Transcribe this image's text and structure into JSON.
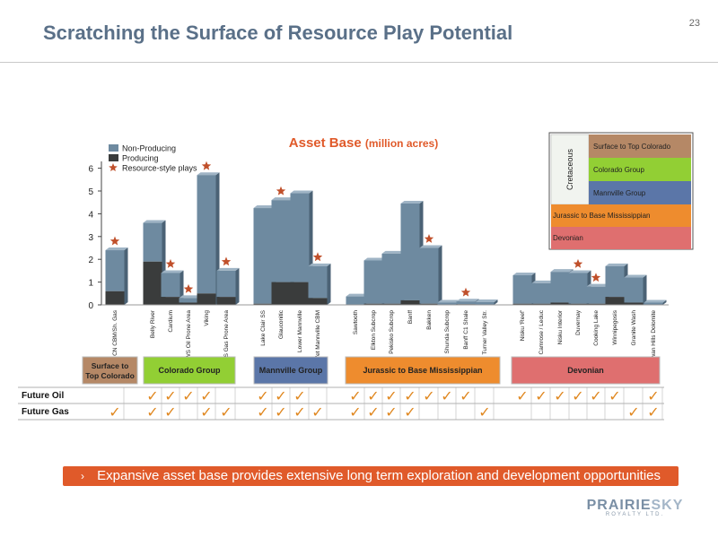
{
  "header": {
    "title": "Scratching the Surface of Resource Play Potential",
    "page_number": "23"
  },
  "callout": {
    "chevron": "›",
    "text": "Expansive asset base provides extensive long term exploration and development opportunities"
  },
  "logo": {
    "brand_part1": "PRAIRIE",
    "brand_part2": "SKY",
    "sub": "ROYALTY LTD."
  },
  "chart_data": {
    "type": "bar",
    "stacked": true,
    "title": "Asset Base",
    "subtitle": "(million acres)",
    "ylim": [
      0,
      6
    ],
    "yticks": [
      0,
      1,
      2,
      3,
      4,
      5,
      6
    ],
    "legend": [
      {
        "label": "Non-Producing",
        "kind": "bar",
        "color": "#6e8aa0"
      },
      {
        "label": "Producing",
        "kind": "bar",
        "color": "#3a3c3c"
      },
      {
        "label": "Resource-style plays",
        "kind": "star",
        "color": "#c0502b"
      }
    ],
    "categories": [
      "HCN CBM/Sh. Gas",
      "Belly River",
      "Cardium",
      "SWS Oil Prone Area",
      "Viking",
      "SWS Gas Prone Area",
      "Lake Clair SS",
      "Glauconitic",
      "Lower Mannville",
      "Wet Mannville CBM",
      "Sawtooth",
      "Elkton Subcrop",
      "Pekisko Subcrop",
      "Banff",
      "Bakken",
      "Shunda Subcrop",
      "Banff C1 Shale",
      "Turner Valley Str.",
      "Nisku 'Reef'",
      "Camrose / Leduc",
      "Nisku Interior",
      "Duvernay",
      "Cooking Lake",
      "Winnipegosis",
      "Granite Wash",
      "Swan Hills Dolomite"
    ],
    "series": [
      {
        "name": "Producing",
        "values": [
          0.6,
          1.9,
          0.35,
          0.1,
          0.5,
          0.35,
          0.05,
          1.0,
          1.0,
          0.3,
          0.02,
          0.05,
          0.05,
          0.2,
          0.05,
          0.02,
          0.03,
          0.02,
          0.05,
          0.05,
          0.1,
          0.05,
          0.05,
          0.35,
          0.1,
          0.02
        ]
      },
      {
        "name": "Non-Producing",
        "values": [
          1.8,
          1.7,
          1.05,
          0.2,
          5.2,
          1.15,
          4.2,
          3.6,
          3.9,
          1.4,
          0.35,
          1.9,
          2.2,
          4.25,
          2.45,
          0.08,
          0.12,
          0.1,
          1.25,
          0.9,
          1.35,
          1.35,
          0.75,
          1.35,
          1.1,
          0.08
        ]
      }
    ],
    "resource_plays": [
      0,
      2,
      3,
      4,
      5,
      7,
      9,
      14,
      16,
      21,
      22
    ],
    "groups": [
      {
        "label": "Surface to Top Colorado",
        "color": "#b58866",
        "start": 0,
        "end": 0
      },
      {
        "label": "Colorado Group",
        "color": "#92cf34",
        "start": 1,
        "end": 5
      },
      {
        "label": "Mannville Group",
        "color": "#5b76a8",
        "start": 6,
        "end": 9
      },
      {
        "label": "Jurassic to Base Mississippian",
        "color": "#ee8c2e",
        "start": 10,
        "end": 17
      },
      {
        "label": "Devonian",
        "color": "#df6f6f",
        "start": 18,
        "end": 25
      }
    ],
    "strata_legend": {
      "era": "Cretaceous",
      "cretaceous_items": [
        {
          "label": "Surface to Top Colorado",
          "color": "#b58866"
        },
        {
          "label": "Colorado Group",
          "color": "#92cf34"
        },
        {
          "label": "Mannville Group",
          "color": "#5b76a8"
        }
      ],
      "other_items": [
        {
          "label": "Jurassic to Base Mississippian",
          "color": "#ee8c2e"
        },
        {
          "label": "Devonian",
          "color": "#df6f6f"
        }
      ]
    },
    "potential_table": {
      "check": "✓",
      "rows": [
        {
          "label": "Future Oil",
          "checks": [
            false,
            true,
            true,
            true,
            true,
            false,
            true,
            true,
            true,
            false,
            true,
            true,
            true,
            true,
            true,
            true,
            true,
            false,
            true,
            true,
            true,
            true,
            true,
            true,
            false,
            true
          ]
        },
        {
          "label": "Future Gas",
          "checks": [
            true,
            true,
            true,
            false,
            true,
            true,
            true,
            true,
            true,
            true,
            true,
            true,
            true,
            true,
            false,
            false,
            false,
            true,
            false,
            false,
            false,
            false,
            false,
            false,
            true,
            true
          ]
        }
      ]
    }
  }
}
